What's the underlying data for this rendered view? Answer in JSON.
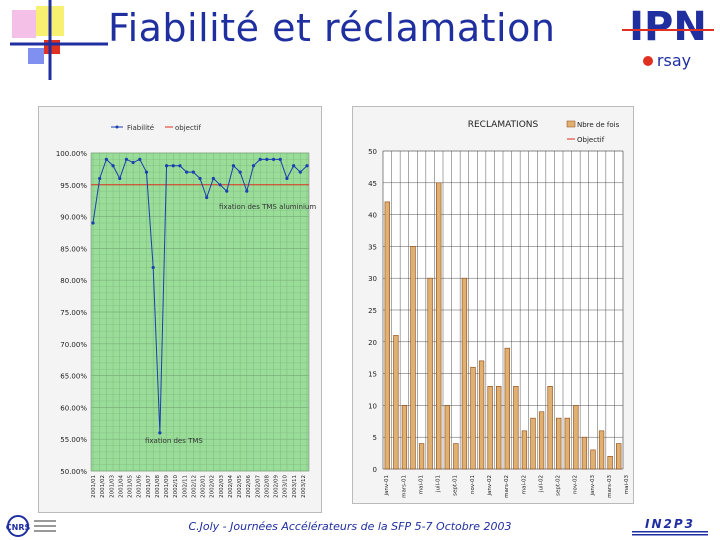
{
  "title": "Fiabilité et réclamation",
  "footer": "C.Joly - Journées Accélérateurs de la SFP 5-7 Octobre 2003",
  "logos": {
    "ipn_main": "IPN",
    "ipn_sub": "rsay",
    "in2p3": "IN2P3",
    "cnrs": "CNRS"
  },
  "colors": {
    "title": "#1f2fa0",
    "plot_bg": "#99dd99",
    "grid": "#7ab07a",
    "line": "#1a3fb0",
    "objective": "#e03020",
    "bar_fill": "#e0b070",
    "bar_stroke": "#8b4513"
  },
  "chart_data": [
    {
      "type": "line",
      "legend": [
        "Fiabilité",
        "objectif"
      ],
      "yticks": [
        "100.00%",
        "95.00%",
        "90.00%",
        "85.00%",
        "80.00%",
        "75.00%",
        "70.00%",
        "65.00%",
        "60.00%",
        "55.00%",
        "50.00%"
      ],
      "xticks": [
        "2001/01",
        "2001/02",
        "2001/03",
        "2001/04",
        "2001/05",
        "2001/06",
        "2001/07",
        "2001/08",
        "2001/09",
        "2002/10",
        "2002/11",
        "2002/12",
        "2002/01",
        "2002/02",
        "2002/03",
        "2002/04",
        "2002/05",
        "2002/06",
        "2002/07",
        "2002/08",
        "2002/09",
        "2003/10",
        "2003/11",
        "2003/12"
      ],
      "ylim": [
        50,
        100
      ],
      "objective": 95,
      "annotations": [
        "fixation des TMS aluminium",
        "fixation des TMS"
      ],
      "series": [
        {
          "name": "Fiabilité",
          "values": [
            89,
            96,
            99,
            98,
            96,
            99,
            98.5,
            99,
            97,
            82,
            56,
            98,
            98,
            98,
            97,
            97,
            96,
            93,
            96,
            95,
            94,
            98,
            97,
            94,
            98,
            99,
            99,
            99,
            99,
            96,
            98,
            97,
            98
          ]
        }
      ]
    },
    {
      "type": "bar",
      "title": "RECLAMATIONS",
      "legend": [
        "Nbre de fois",
        "Objectif"
      ],
      "ylim": [
        0,
        50
      ],
      "yticks": [
        "50",
        "45",
        "40",
        "35",
        "30",
        "25",
        "20",
        "15",
        "10",
        "5",
        "0"
      ],
      "xticks": [
        "janv-01",
        "mars-01",
        "mai-01",
        "juil-01",
        "sept-01",
        "nov-01",
        "janv-02",
        "mars-02",
        "mai-02",
        "juil-02",
        "sept-02",
        "nov-02",
        "janv-03",
        "mars-03",
        "mai-03"
      ],
      "values": [
        42,
        21,
        10,
        35,
        4,
        30,
        45,
        10,
        4,
        30,
        16,
        17,
        13,
        13,
        19,
        13,
        6,
        8,
        9,
        13,
        8,
        8,
        10,
        5,
        3,
        6,
        2,
        4
      ]
    }
  ]
}
